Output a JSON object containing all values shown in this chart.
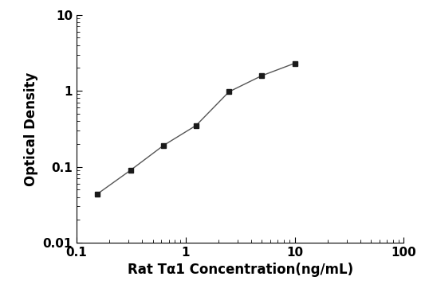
{
  "x": [
    0.156,
    0.313,
    0.625,
    1.25,
    2.5,
    5.0,
    10.0
  ],
  "y": [
    0.044,
    0.09,
    0.19,
    0.35,
    0.97,
    1.58,
    2.3
  ],
  "xlabel": "Rat Tα1 Concentration(ng/mL)",
  "ylabel": "Optical Density",
  "xlim": [
    0.1,
    100
  ],
  "ylim": [
    0.01,
    10
  ],
  "xticks": [
    0.1,
    1,
    10,
    100
  ],
  "yticks": [
    0.01,
    0.1,
    1,
    10
  ],
  "xtick_labels": [
    "0.1",
    "1",
    "10",
    "100"
  ],
  "ytick_labels": [
    "0.01",
    "0.1",
    "1",
    "10"
  ],
  "marker": "s",
  "marker_color": "#1a1a1a",
  "line_color": "#555555",
  "marker_size": 5,
  "line_width": 1.0,
  "background_color": "#ffffff",
  "xlabel_fontsize": 12,
  "ylabel_fontsize": 12,
  "tick_fontsize": 11,
  "tick_fontweight": "bold"
}
